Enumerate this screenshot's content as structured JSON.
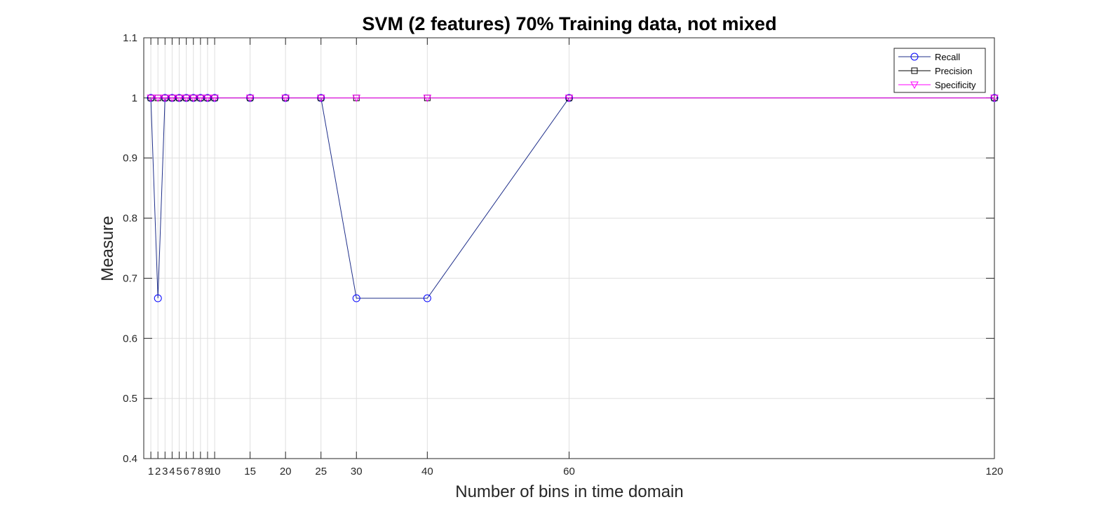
{
  "chart_data": {
    "type": "line",
    "title": "SVM (2 features) 70% Training data, not mixed",
    "xlabel": "Number of bins in time domain",
    "ylabel": "Measure",
    "x": [
      1,
      2,
      3,
      4,
      5,
      6,
      7,
      8,
      9,
      10,
      15,
      20,
      25,
      30,
      40,
      60,
      120
    ],
    "x_ticks": [
      1,
      2,
      3,
      4,
      5,
      6,
      7,
      8,
      9,
      10,
      15,
      20,
      25,
      30,
      40,
      60,
      120
    ],
    "y_ticks": [
      "0.4",
      "0.5",
      "0.6",
      "0.7",
      "0.8",
      "0.9",
      "1",
      "1.1"
    ],
    "xlim": [
      0,
      120
    ],
    "ylim": [
      0.4,
      1.1
    ],
    "grid": true,
    "legend_position": "top-right",
    "series": [
      {
        "name": "Recall",
        "marker": "circle",
        "color": "#0000ff",
        "line_color": "#1f2f8a",
        "values": [
          1,
          0.6667,
          1,
          1,
          1,
          1,
          1,
          1,
          1,
          1,
          1,
          1,
          1,
          0.6667,
          0.6667,
          1,
          1
        ]
      },
      {
        "name": "Precision",
        "marker": "square",
        "color": "#000000",
        "line_color": "#000000",
        "values": [
          1,
          1,
          1,
          1,
          1,
          1,
          1,
          1,
          1,
          1,
          1,
          1,
          1,
          1,
          1,
          1,
          1
        ]
      },
      {
        "name": "Specificity",
        "marker": "triangle-down",
        "color": "#ff00ff",
        "line_color": "#ff00ff",
        "values": [
          1,
          1,
          1,
          1,
          1,
          1,
          1,
          1,
          1,
          1,
          1,
          1,
          1,
          1,
          1,
          1,
          1
        ]
      }
    ]
  }
}
